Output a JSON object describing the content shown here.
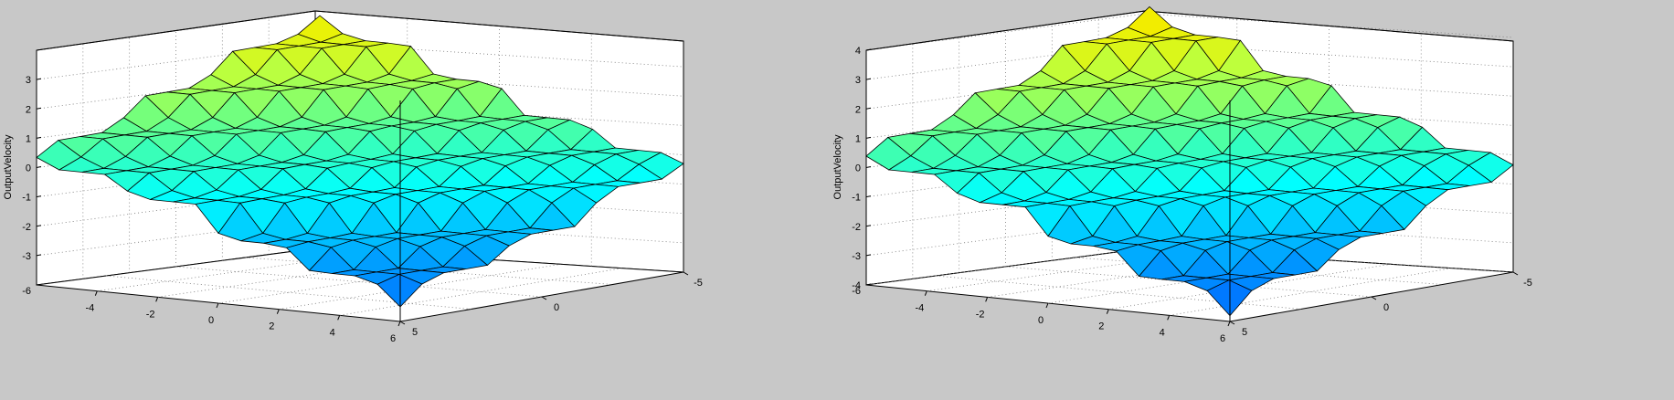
{
  "chart_data": [
    {
      "type": "surface3d",
      "title": "",
      "zlabel": "OutputVelocity",
      "xlim": [
        -6,
        6
      ],
      "ylim": [
        -5,
        5
      ],
      "zlim": [
        -4,
        4
      ],
      "z_ticks": [
        "-3",
        "-2",
        "-1",
        "0",
        "1",
        "2",
        "3"
      ],
      "z_tick_values": [
        -3,
        -2,
        -1,
        0,
        1,
        2,
        3
      ],
      "z_axis_bottom_label": "-6",
      "x_ticks": [
        "-4",
        "-2",
        "0",
        "2",
        "4",
        "6"
      ],
      "x_tick_values": [
        -4,
        -2,
        0,
        2,
        4,
        6
      ],
      "y_ticks": [
        "5",
        "0",
        "-5"
      ],
      "y_tick_values": [
        5,
        0,
        -5
      ],
      "grid": true,
      "colormap": "parula",
      "levels": [
        -3.5,
        -2.6,
        -1.8,
        -0.7,
        0,
        0.8,
        1.8,
        2.8,
        3.5
      ],
      "z_scale": 1.0
    },
    {
      "type": "surface3d",
      "title": "",
      "zlabel": "OutputVelocity",
      "xlim": [
        -6,
        6
      ],
      "ylim": [
        -5,
        5
      ],
      "zlim": [
        -4,
        4
      ],
      "z_ticks": [
        "-4",
        "-3",
        "-2",
        "-1",
        "0",
        "1",
        "2",
        "3",
        "4"
      ],
      "z_tick_values": [
        -4,
        -3,
        -2,
        -1,
        0,
        1,
        2,
        3,
        4
      ],
      "z_axis_bottom_label": "-6",
      "x_ticks": [
        "-4",
        "-2",
        "0",
        "2",
        "4",
        "6"
      ],
      "x_tick_values": [
        -4,
        -2,
        0,
        2,
        4,
        6
      ],
      "y_ticks": [
        "5",
        "0",
        "-5"
      ],
      "y_tick_values": [
        5,
        0,
        -5
      ],
      "grid": true,
      "colormap": "parula",
      "levels": [
        -3.8,
        -2.8,
        -1.9,
        -0.8,
        0,
        0.9,
        1.9,
        3.0,
        3.8
      ],
      "z_scale": 1.0
    }
  ]
}
